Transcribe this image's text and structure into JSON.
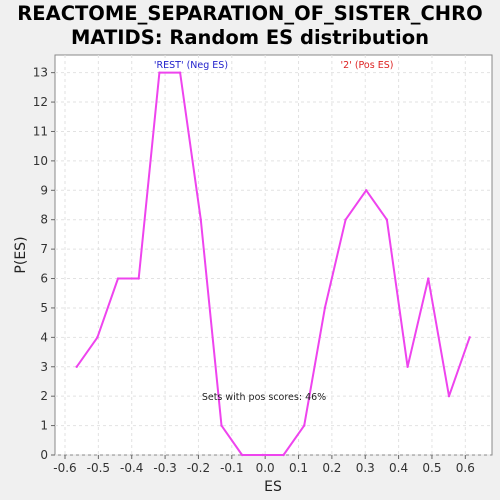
{
  "chart_data": {
    "type": "line",
    "title_line1": "REACTOME_SEPARATION_OF_SISTER_CHRO",
    "title_line2": "MATIDS: Random ES distribution",
    "xlabel": "ES",
    "ylabel": "P(ES)",
    "xlim": [
      -0.63,
      0.68
    ],
    "ylim": [
      0,
      13.6
    ],
    "x_ticks": [
      -0.6,
      -0.5,
      -0.4,
      -0.3,
      -0.2,
      -0.1,
      0.0,
      0.1,
      0.2,
      0.3,
      0.4,
      0.5,
      0.6
    ],
    "x_tick_labels": [
      "-0.6",
      "-0.5",
      "-0.4",
      "-0.3",
      "-0.2",
      "-0.1",
      "0.0",
      "0.1",
      "0.2",
      "0.3",
      "0.4",
      "0.5",
      "0.6"
    ],
    "y_ticks": [
      0,
      1,
      2,
      3,
      4,
      5,
      6,
      7,
      8,
      9,
      10,
      11,
      12,
      13
    ],
    "y_tick_labels": [
      "0",
      "1",
      "2",
      "3",
      "4",
      "5",
      "6",
      "7",
      "8",
      "9",
      "10",
      "11",
      "12",
      "13"
    ],
    "grid": true,
    "series": [
      {
        "color": "#ee44ee",
        "x": [
          -0.565,
          -0.503,
          -0.441,
          -0.379,
          -0.317,
          -0.255,
          -0.193,
          -0.131,
          -0.069,
          -0.007,
          0.055,
          0.117,
          0.179,
          0.241,
          0.303,
          0.365,
          0.427,
          0.489,
          0.551,
          0.613
        ],
        "y": [
          3,
          4,
          6,
          6,
          13,
          13,
          8,
          1,
          0,
          0,
          0,
          1,
          5,
          8,
          9,
          8,
          3,
          6,
          2,
          4
        ]
      }
    ],
    "annotations": {
      "neg_label": "'REST' (Neg ES)",
      "neg_color": "#2222cc",
      "pos_label": "'2' (Pos ES)",
      "pos_color": "#dd2222",
      "pos_fraction_text": "Sets with pos scores: 46%"
    }
  }
}
